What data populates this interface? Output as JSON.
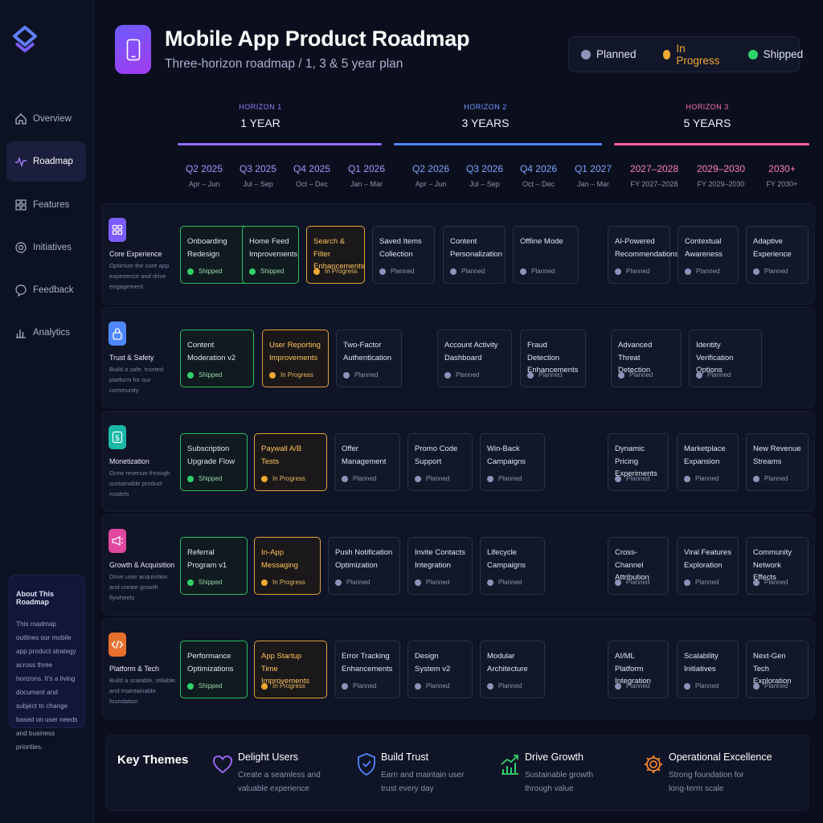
{
  "app": {
    "title": "Mobile App Product Roadmap",
    "subtitle": "Three-horizon roadmap / 1, 3 & 5 year plan"
  },
  "colors": {
    "planned": "#8b93b8",
    "in_progress": "#f0a830",
    "shipped": "#2fd16b",
    "accent": "#7b5cff"
  },
  "legend": [
    {
      "label": "Planned",
      "color": "#8b93b8"
    },
    {
      "label": "In Progress",
      "color": "#f0a830"
    },
    {
      "label": "Shipped",
      "color": "#2fd16b"
    }
  ],
  "sidebar": {
    "items": [
      {
        "label": "Overview",
        "icon": "home-icon"
      },
      {
        "label": "Roadmap",
        "icon": "pulse-icon"
      },
      {
        "label": "Features",
        "icon": "grid-icon"
      },
      {
        "label": "Initiatives",
        "icon": "target-icon"
      },
      {
        "label": "Feedback",
        "icon": "chat-icon"
      },
      {
        "label": "Analytics",
        "icon": "bar-chart-icon"
      }
    ],
    "active": "Roadmap",
    "about": {
      "title": "About This Roadmap",
      "text": "This roadmap outlines our mobile app product strategy across three horizons. It's a living document and subject to change based on user needs and business priorities."
    }
  },
  "horizons": [
    {
      "label": "HORIZON 1",
      "title": "1 YEAR",
      "color": "#8f6bff"
    },
    {
      "label": "HORIZON 2",
      "title": "3 YEARS",
      "color": "#4f86ff"
    },
    {
      "label": "HORIZON 3",
      "title": "5 YEARS",
      "color": "#ff5fa8"
    }
  ],
  "quarters": [
    {
      "name": "Q2 2025",
      "range": "Apr – Jun"
    },
    {
      "name": "Q3 2025",
      "range": "Jul – Sep"
    },
    {
      "name": "Q4 2025",
      "range": "Oct – Dec"
    },
    {
      "name": "Q1 2026",
      "range": "Jan – Mar"
    },
    {
      "name": "Q2 2026",
      "range": "Apr – Jun"
    },
    {
      "name": "Q3 2026",
      "range": "Jul – Sep"
    },
    {
      "name": "Q4 2026",
      "range": "Oct – Dec"
    },
    {
      "name": "Q1 2027",
      "range": "Jan – Mar"
    },
    {
      "name": "2027–2028",
      "range": "FY 2027–2028"
    },
    {
      "name": "2029–2030",
      "range": "FY 2029–2030"
    },
    {
      "name": "2030+",
      "range": "FY 2030+"
    }
  ],
  "status_labels": {
    "shipped": "Shipped",
    "inprogress": "In Progress",
    "planned": "Planned"
  },
  "rows": [
    {
      "title": "Core Experience",
      "desc": "Optimize the core app experience and drive engagement",
      "icon": "grid-icon",
      "color": "#7b5cff",
      "cards": [
        {
          "title": "Onboarding Redesign",
          "status": "shipped"
        },
        {
          "title": "Home Feed Improvements",
          "status": "shipped"
        },
        {
          "title": "Search & Filter Enhancements",
          "status": "inprogress"
        },
        {
          "title": "Saved Items Collection",
          "status": "planned"
        },
        {
          "title": "Content Personalization",
          "status": "planned"
        },
        {
          "title": "Offline Mode",
          "status": "planned"
        },
        {
          "title": "AI-Powered Recommendations",
          "status": "planned"
        },
        {
          "title": "Contextual Awareness",
          "status": "planned"
        },
        {
          "title": "Adaptive Experience",
          "status": "planned"
        }
      ]
    },
    {
      "title": "Trust & Safety",
      "desc": "Build a safe, trusted platform for our community",
      "icon": "lock-icon",
      "color": "#4f86ff",
      "cards": [
        {
          "title": "Content Moderation v2",
          "status": "shipped"
        },
        {
          "title": "User Reporting Improvements",
          "status": "inprogress"
        },
        {
          "title": "Two-Factor Authentication",
          "status": "planned"
        },
        {
          "title": "Account Activity Dashboard",
          "status": "planned"
        },
        {
          "title": "Fraud Detection Enhancements",
          "status": "planned"
        },
        {
          "title": "Advanced Threat Detection",
          "status": "planned"
        },
        {
          "title": "Identity Verification Options",
          "status": "planned"
        }
      ]
    },
    {
      "title": "Monetization",
      "desc": "Grow revenue through sustainable product models",
      "icon": "dollar-icon",
      "color": "#19b8a6",
      "cards": [
        {
          "title": "Subscription Upgrade Flow",
          "status": "shipped"
        },
        {
          "title": "Paywall A/B Tests",
          "status": "inprogress"
        },
        {
          "title": "Offer Management",
          "status": "planned"
        },
        {
          "title": "Promo Code Support",
          "status": "planned"
        },
        {
          "title": "Win-Back Campaigns",
          "status": "planned"
        },
        {
          "title": "Dynamic Pricing Experiments",
          "status": "planned"
        },
        {
          "title": "Marketplace Expansion",
          "status": "planned"
        },
        {
          "title": "New Revenue Streams",
          "status": "planned"
        }
      ]
    },
    {
      "title": "Growth & Acquisition",
      "desc": "Drive user acquisition and create growth flywheels",
      "icon": "megaphone-icon",
      "color": "#e0479e",
      "cards": [
        {
          "title": "Referral Program v1",
          "status": "shipped"
        },
        {
          "title": "In-App Messaging",
          "status": "inprogress"
        },
        {
          "title": "Push Notification Optimization",
          "status": "planned"
        },
        {
          "title": "Invite Contacts Integration",
          "status": "planned"
        },
        {
          "title": "Lifecycle Campaigns",
          "status": "planned"
        },
        {
          "title": "Cross-Channel Attribution",
          "status": "planned"
        },
        {
          "title": "Viral Features Exploration",
          "status": "planned"
        },
        {
          "title": "Community Network Effects",
          "status": "planned"
        }
      ]
    },
    {
      "title": "Platform & Tech",
      "desc": "Build a scalable, reliable, and maintainable foundation",
      "icon": "code-icon",
      "color": "#e8702e",
      "cards": [
        {
          "title": "Performance Optimizations",
          "status": "shipped"
        },
        {
          "title": "App Startup Time Improvements",
          "status": "inprogress"
        },
        {
          "title": "Error Tracking Enhancements",
          "status": "planned"
        },
        {
          "title": "Design System v2",
          "status": "planned"
        },
        {
          "title": "Modular Architecture",
          "status": "planned"
        },
        {
          "title": "AI/ML Platform Integration",
          "status": "planned"
        },
        {
          "title": "Scalability Initiatives",
          "status": "planned"
        },
        {
          "title": "Next-Gen Tech Exploration",
          "status": "planned"
        }
      ]
    }
  ],
  "themes": {
    "title": "Key Themes",
    "items": [
      {
        "title": "Delight Users",
        "desc": "Create a seamless and valuable experience",
        "icon": "heart-icon",
        "color": "#a56bff"
      },
      {
        "title": "Build Trust",
        "desc": "Earn and maintain user trust every day",
        "icon": "shield-icon",
        "color": "#4f86ff"
      },
      {
        "title": "Drive Growth",
        "desc": "Sustainable growth through value",
        "icon": "growth-chart-icon",
        "color": "#2fd16b"
      },
      {
        "title": "Operational Excellence",
        "desc": "Strong foundation for long-term scale",
        "icon": "gear-icon",
        "color": "#f0852e"
      }
    ]
  }
}
